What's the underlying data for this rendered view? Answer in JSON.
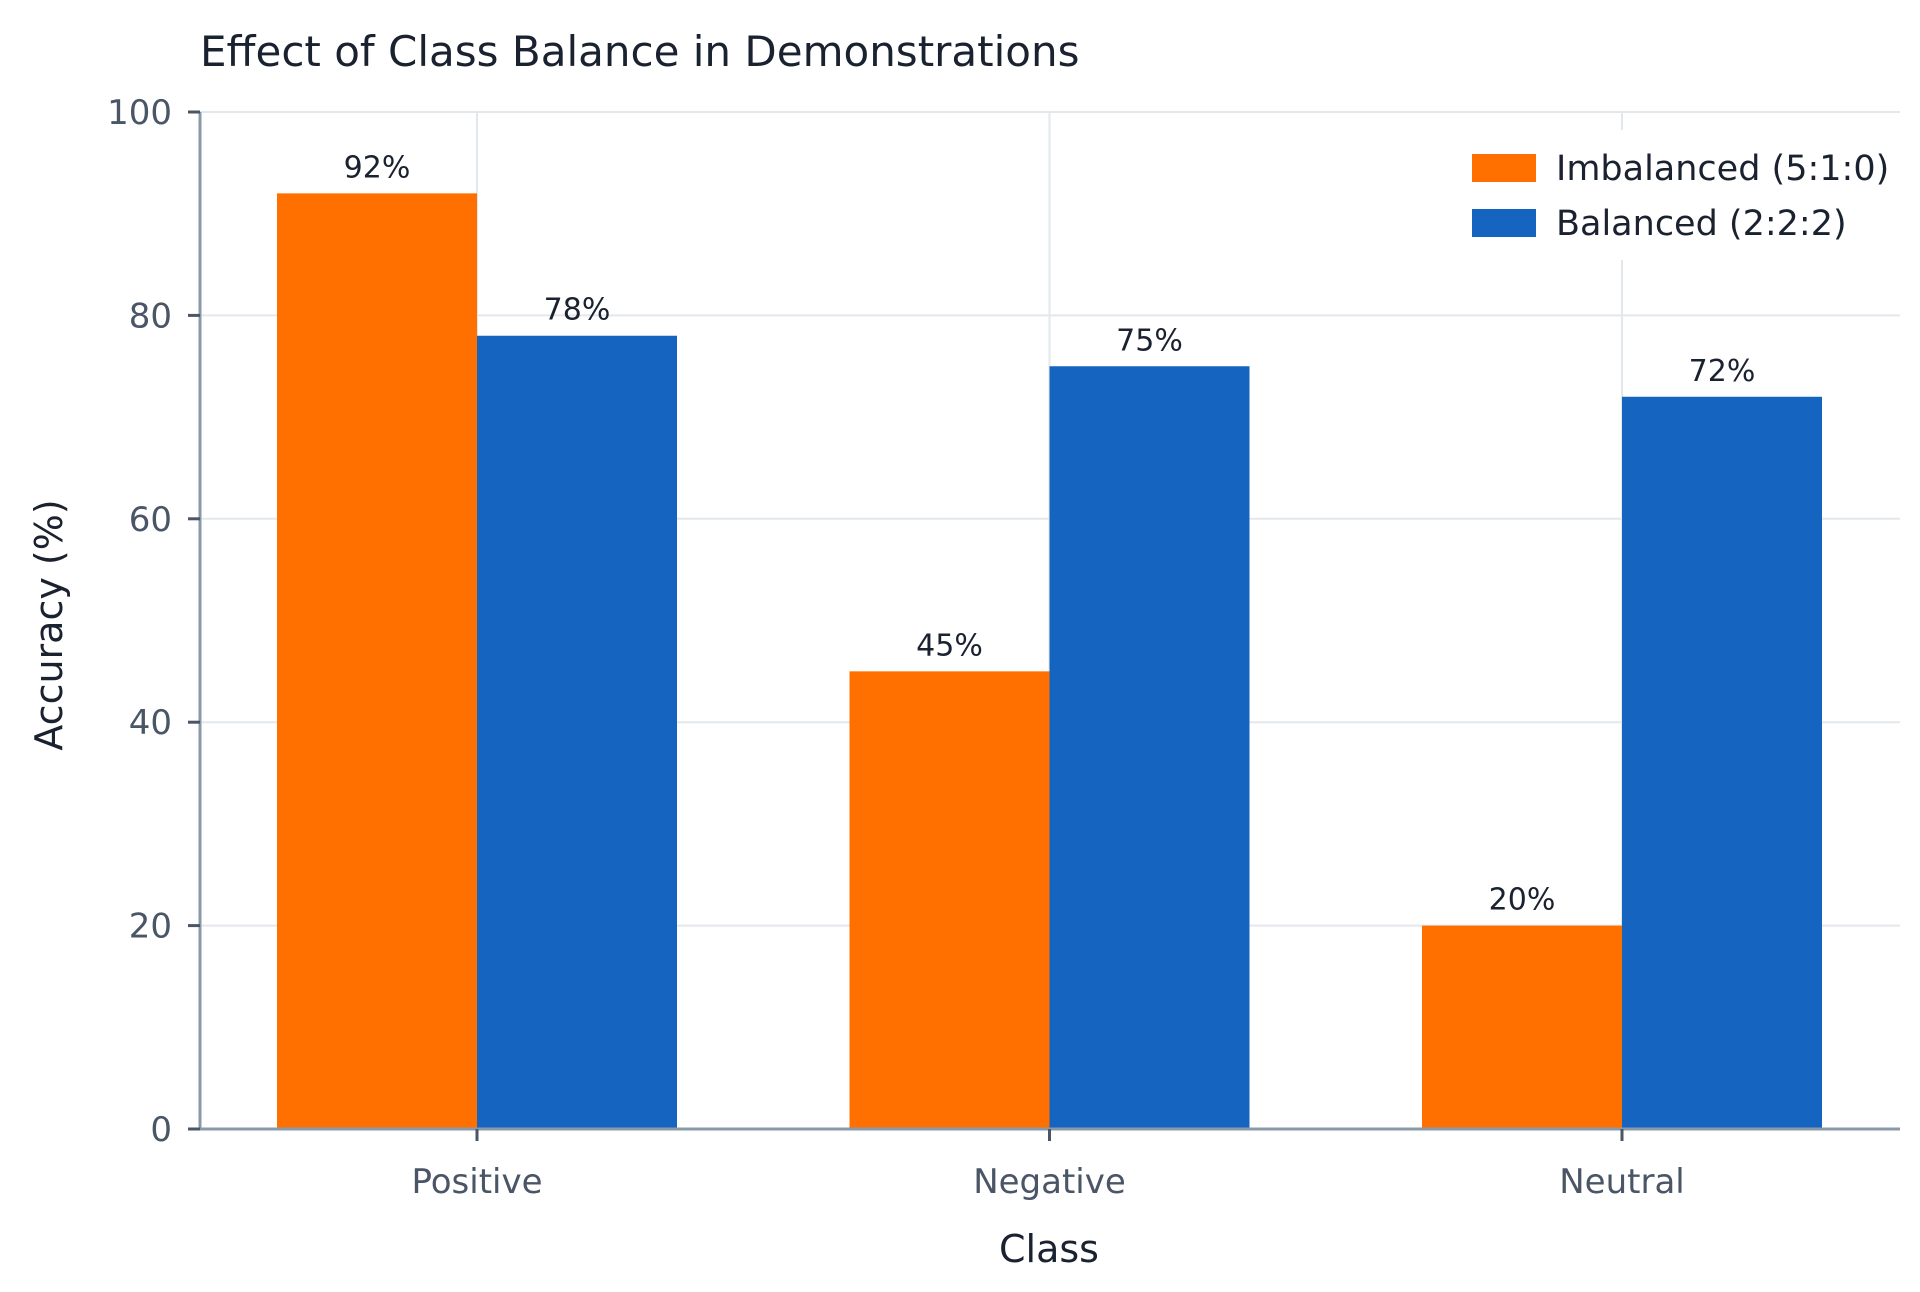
{
  "chart_data": {
    "type": "bar",
    "title": "Effect of Class Balance in Demonstrations",
    "xlabel": "Class",
    "ylabel": "Accuracy (%)",
    "categories": [
      "Positive",
      "Negative",
      "Neutral"
    ],
    "series": [
      {
        "name": "Imbalanced (5:1:0)",
        "color": "#ff7000",
        "values": [
          92,
          45,
          20
        ],
        "labels": [
          "92%",
          "45%",
          "20%"
        ]
      },
      {
        "name": "Balanced (2:2:2)",
        "color": "#1565c0",
        "values": [
          78,
          75,
          72
        ],
        "labels": [
          "78%",
          "75%",
          "72%"
        ]
      }
    ],
    "ylim": [
      0,
      100
    ],
    "yticks": [
      0,
      20,
      40,
      60,
      80,
      100
    ],
    "ytick_labels": [
      "0",
      "20",
      "40",
      "60",
      "80",
      "100"
    ],
    "grid": true,
    "legend_position": "top-right"
  }
}
